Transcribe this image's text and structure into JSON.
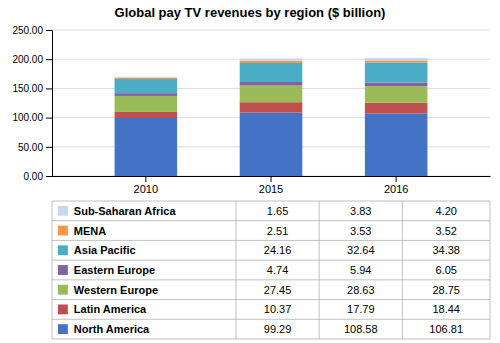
{
  "chart_data": {
    "type": "bar",
    "stacked": true,
    "title": "Global pay TV revenues by region ($ billion)",
    "categories": [
      "2010",
      "2015",
      "2016"
    ],
    "series": [
      {
        "name": "North America",
        "color": "#4472C4",
        "values": [
          99.29,
          108.58,
          106.81
        ],
        "value_labels": [
          "99.29",
          "108.58",
          "106.81"
        ]
      },
      {
        "name": "Latin America",
        "color": "#C0504D",
        "values": [
          10.37,
          17.79,
          18.44
        ],
        "value_labels": [
          "10.37",
          "17.79",
          "18.44"
        ]
      },
      {
        "name": "Western Europe",
        "color": "#9BBB59",
        "values": [
          27.45,
          28.63,
          28.75
        ],
        "value_labels": [
          "27.45",
          "28.63",
          "28.75"
        ]
      },
      {
        "name": "Eastern Europe",
        "color": "#8064A2",
        "values": [
          4.74,
          5.94,
          6.05
        ],
        "value_labels": [
          "4.74",
          "5.94",
          "6.05"
        ]
      },
      {
        "name": "Asia Pacific",
        "color": "#4BACC6",
        "values": [
          24.16,
          32.64,
          34.38
        ],
        "value_labels": [
          "24.16",
          "32.64",
          "34.38"
        ]
      },
      {
        "name": "MENA",
        "color": "#F79646",
        "values": [
          2.51,
          3.53,
          3.52
        ],
        "value_labels": [
          "2.51",
          "3.53",
          "3.52"
        ]
      },
      {
        "name": "Sub-Saharan Africa",
        "color": "#C6D9F1",
        "values": [
          1.65,
          3.83,
          4.2
        ],
        "value_labels": [
          "1.65",
          "3.83",
          "4.20"
        ]
      }
    ],
    "ylim": [
      0,
      250
    ],
    "yticks": [
      {
        "value": 0,
        "label": "0.00"
      },
      {
        "value": 50,
        "label": "50.00"
      },
      {
        "value": 100,
        "label": "100.00"
      },
      {
        "value": 150,
        "label": "150.00"
      },
      {
        "value": 200,
        "label": "200.00"
      },
      {
        "value": 250,
        "label": "250.00"
      }
    ],
    "grid": true
  }
}
